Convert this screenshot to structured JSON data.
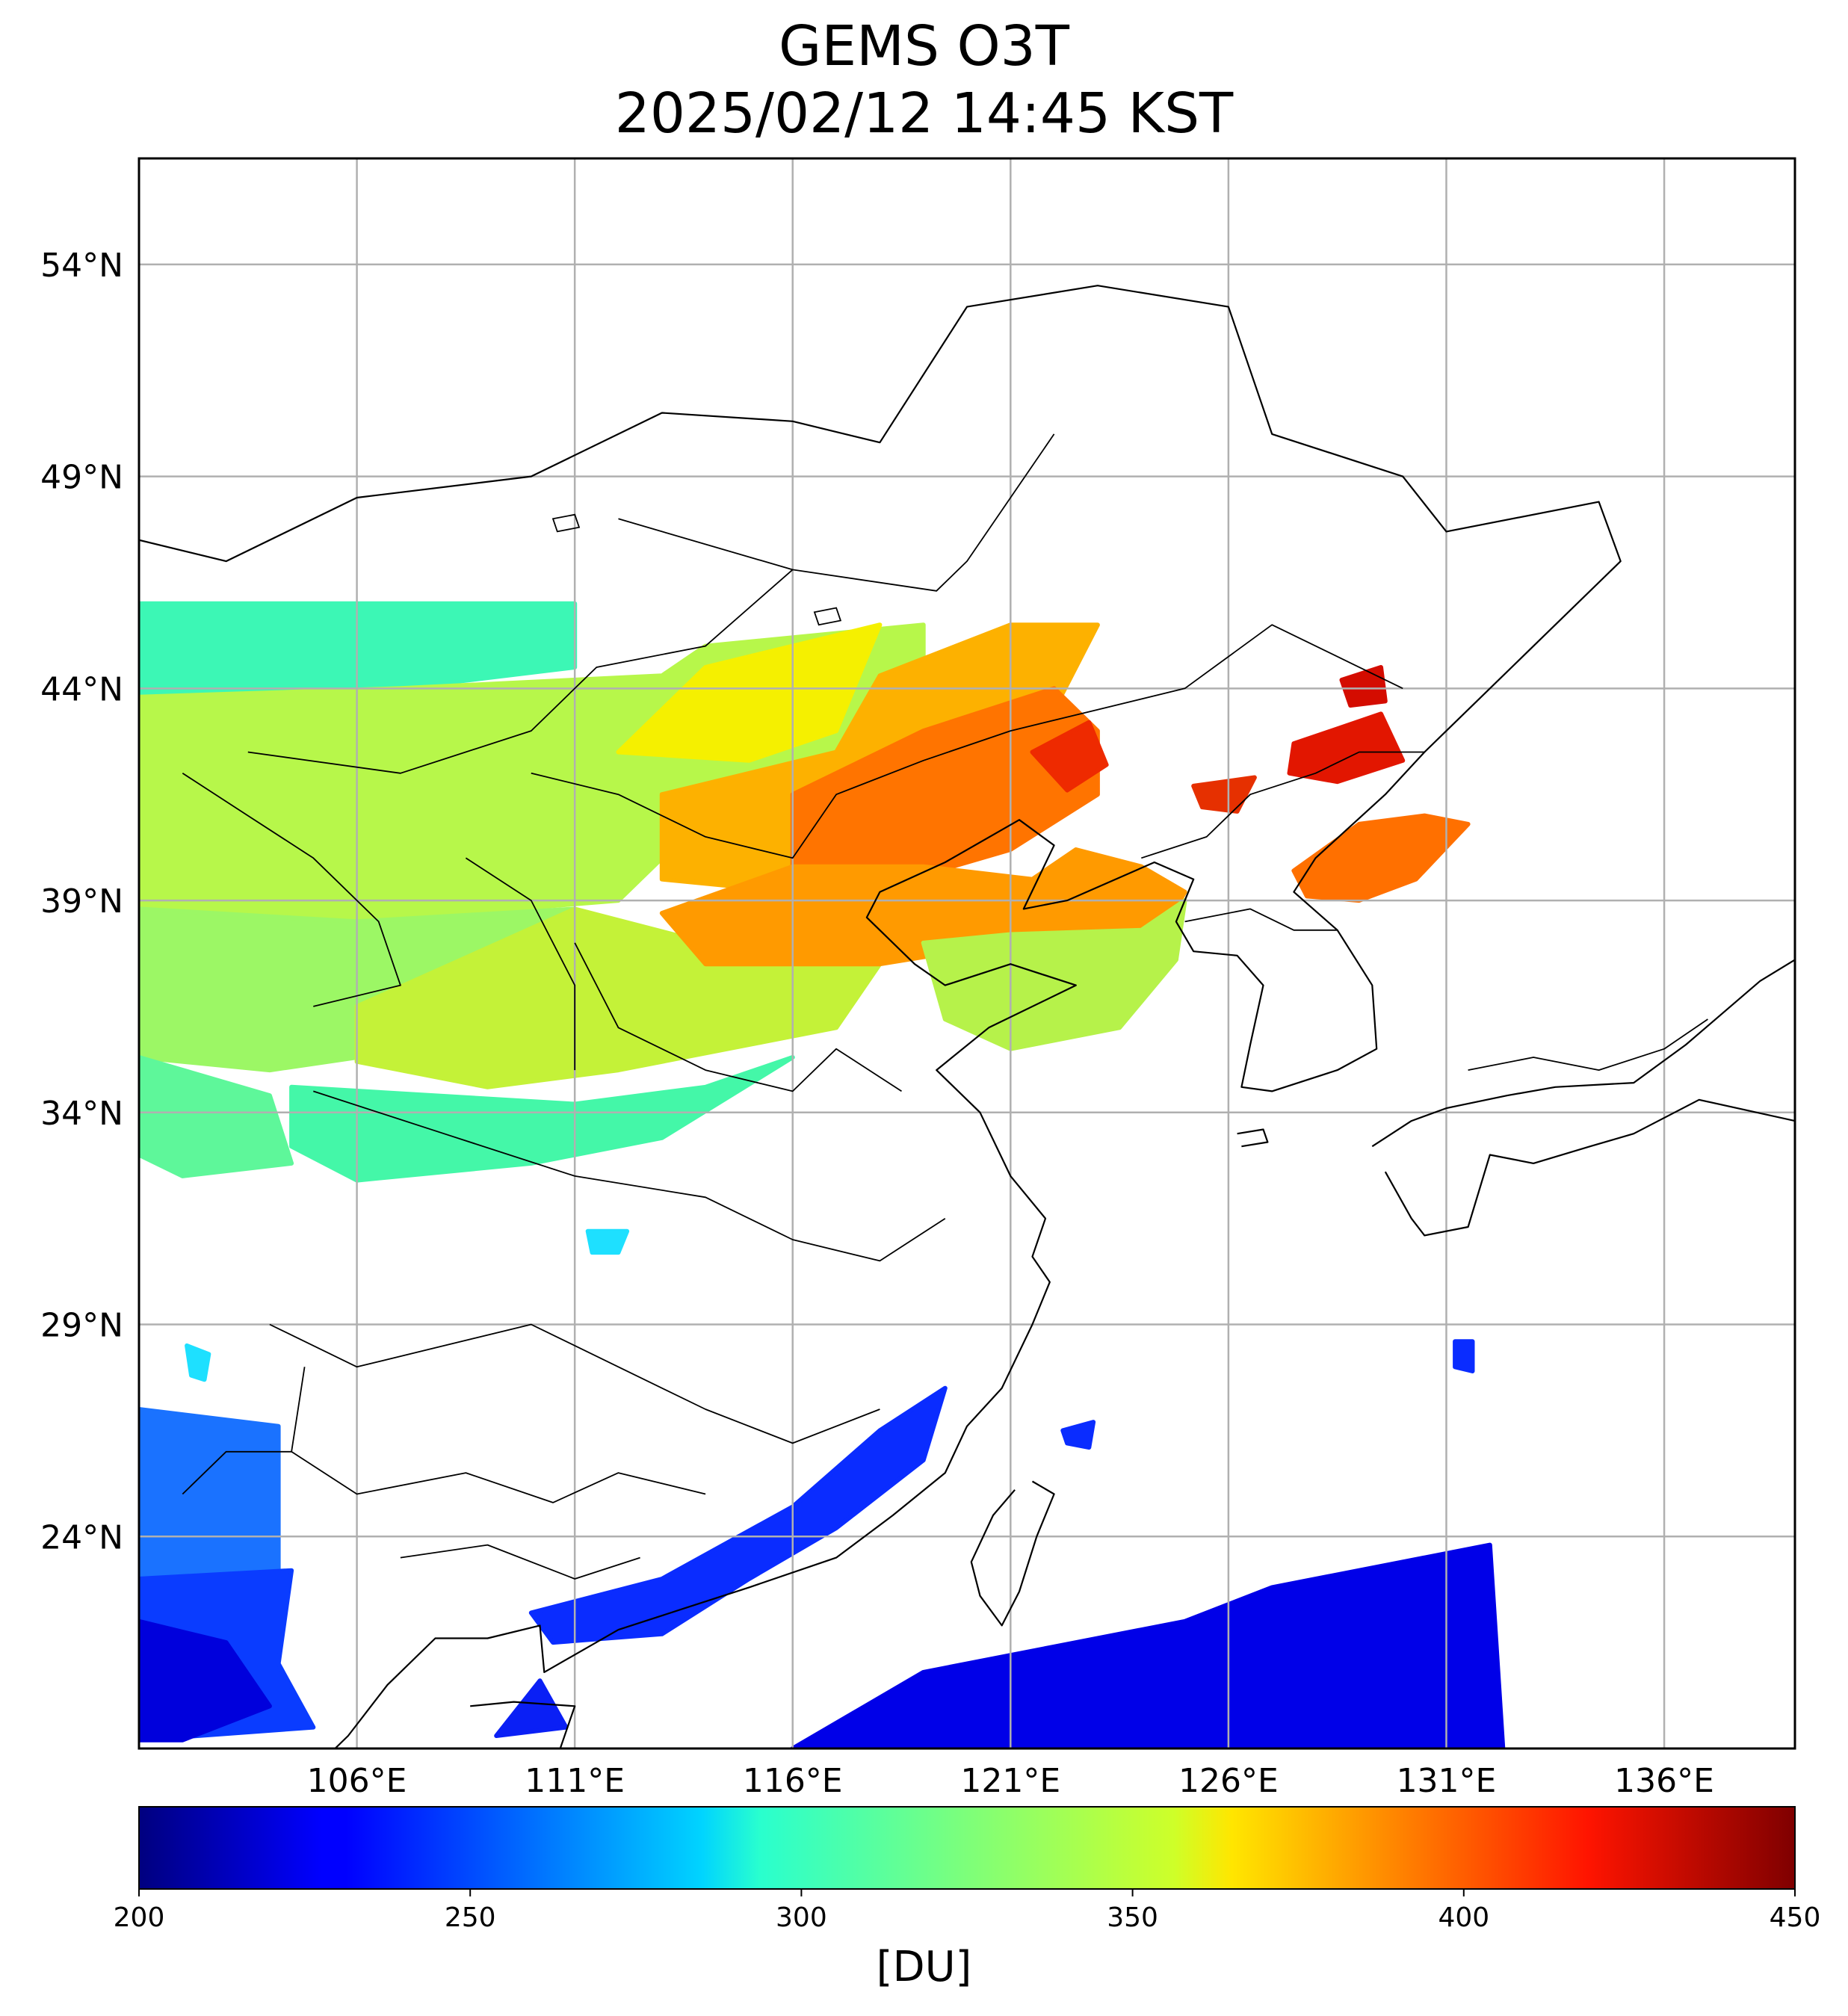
{
  "title": {
    "line1": "GEMS O3T",
    "line2": "2025/02/12 14:45 KST"
  },
  "map_extent": {
    "lon": [
      101,
      139
    ],
    "lat": [
      19,
      56.5
    ]
  },
  "lat_ticks": [
    {
      "value": 54,
      "label": "54°N"
    },
    {
      "value": 49,
      "label": "49°N"
    },
    {
      "value": 44,
      "label": "44°N"
    },
    {
      "value": 39,
      "label": "39°N"
    },
    {
      "value": 34,
      "label": "34°N"
    },
    {
      "value": 29,
      "label": "29°N"
    },
    {
      "value": 24,
      "label": "24°N"
    }
  ],
  "lon_ticks": [
    {
      "value": 106,
      "label": "106°E"
    },
    {
      "value": 111,
      "label": "111°E"
    },
    {
      "value": 116,
      "label": "116°E"
    },
    {
      "value": 121,
      "label": "121°E"
    },
    {
      "value": 126,
      "label": "126°E"
    },
    {
      "value": 131,
      "label": "131°E"
    },
    {
      "value": 136,
      "label": "136°E"
    }
  ],
  "colorbar": {
    "colormap": "jet",
    "range": [
      200,
      450
    ],
    "ticks": [
      "200",
      "250",
      "300",
      "350",
      "400",
      "450"
    ],
    "unit": "[DU]"
  },
  "ozone_regions": [
    {
      "color": "#3cf7b5",
      "lonlat": [
        [
          101,
          46
        ],
        [
          111,
          46
        ],
        [
          111,
          44.5
        ],
        [
          107,
          44
        ],
        [
          101,
          43.8
        ]
      ]
    },
    {
      "color": "#b7f74a",
      "lonlat": [
        [
          101,
          43.8
        ],
        [
          107,
          44
        ],
        [
          113,
          44.3
        ],
        [
          114,
          45
        ],
        [
          119,
          45.5
        ],
        [
          119,
          44
        ],
        [
          117,
          42
        ],
        [
          114,
          41
        ],
        [
          112,
          39
        ],
        [
          106,
          38.5
        ],
        [
          101,
          38.8
        ]
      ]
    },
    {
      "color": "#f5f000",
      "lonlat": [
        [
          112,
          42.5
        ],
        [
          114,
          44.5
        ],
        [
          118,
          45.5
        ],
        [
          117,
          43
        ],
        [
          115,
          42.3
        ]
      ]
    },
    {
      "color": "#9cf765",
      "lonlat": [
        [
          101,
          38.8
        ],
        [
          106,
          38.5
        ],
        [
          111,
          38.8
        ],
        [
          113,
          37.8
        ],
        [
          108,
          35.6
        ],
        [
          104,
          35
        ],
        [
          101,
          35.3
        ]
      ]
    },
    {
      "color": "#c4f238",
      "lonlat": [
        [
          106,
          36.5
        ],
        [
          111,
          38.8
        ],
        [
          114,
          38
        ],
        [
          118,
          37.5
        ],
        [
          117,
          36
        ],
        [
          112,
          35
        ],
        [
          109,
          34.6
        ],
        [
          106,
          35.2
        ]
      ]
    },
    {
      "color": "#44f7a8",
      "lonlat": [
        [
          104.5,
          34.6
        ],
        [
          111,
          34.2
        ],
        [
          114,
          34.6
        ],
        [
          116,
          35.3
        ],
        [
          113,
          33.4
        ],
        [
          110,
          32.8
        ],
        [
          106,
          32.4
        ],
        [
          104.5,
          33.2
        ]
      ]
    },
    {
      "color": "#5ef79a",
      "lonlat": [
        [
          101,
          35.3
        ],
        [
          104,
          34.4
        ],
        [
          104.5,
          32.8
        ],
        [
          102,
          32.5
        ],
        [
          101,
          33
        ]
      ]
    },
    {
      "color": "#fdb100",
      "lonlat": [
        [
          113,
          41.5
        ],
        [
          117,
          42.5
        ],
        [
          118,
          44.3
        ],
        [
          121,
          45.5
        ],
        [
          123,
          45.5
        ],
        [
          122,
          43.5
        ],
        [
          121,
          41.5
        ],
        [
          118,
          40
        ],
        [
          116,
          39.2
        ],
        [
          113,
          39.5
        ]
      ]
    },
    {
      "color": "#ff7400",
      "lonlat": [
        [
          116,
          41.5
        ],
        [
          119,
          43
        ],
        [
          122,
          44
        ],
        [
          123,
          43
        ],
        [
          123,
          41.5
        ],
        [
          121,
          40.2
        ],
        [
          118,
          39.3
        ],
        [
          116,
          39.8
        ]
      ]
    },
    {
      "color": "#ff9a00",
      "lonlat": [
        [
          113,
          38.7
        ],
        [
          116,
          39.8
        ],
        [
          119,
          39.8
        ],
        [
          121.5,
          39.5
        ],
        [
          122.5,
          40.2
        ],
        [
          124,
          39.8
        ],
        [
          125,
          39.2
        ],
        [
          124.5,
          38.3
        ],
        [
          121,
          38
        ],
        [
          118,
          37.5
        ],
        [
          114,
          37.5
        ]
      ]
    },
    {
      "color": "#ee2a00",
      "lonlat": [
        [
          121.5,
          42.5
        ],
        [
          122.8,
          43.2
        ],
        [
          123.2,
          42.2
        ],
        [
          122.3,
          41.6
        ]
      ]
    },
    {
      "color": "#b6f24a",
      "lonlat": [
        [
          119,
          38
        ],
        [
          121,
          38.2
        ],
        [
          124,
          38.3
        ],
        [
          125,
          39
        ],
        [
          124.8,
          37.6
        ],
        [
          123.5,
          36
        ],
        [
          121,
          35.5
        ],
        [
          119.5,
          36.2
        ]
      ]
    },
    {
      "color": "#ff7000",
      "lonlat": [
        [
          127.5,
          39.7
        ],
        [
          129,
          40.8
        ],
        [
          130.5,
          41
        ],
        [
          131.5,
          40.8
        ],
        [
          130.3,
          39.5
        ],
        [
          129,
          39
        ],
        [
          127.8,
          39.1
        ]
      ]
    },
    {
      "color": "#e21600",
      "lonlat": [
        [
          127.5,
          42.7
        ],
        [
          129.5,
          43.4
        ],
        [
          130,
          42.3
        ],
        [
          128.5,
          41.8
        ],
        [
          127.4,
          42
        ]
      ]
    },
    {
      "color": "#d40c00",
      "lonlat": [
        [
          128.6,
          44.2
        ],
        [
          129.5,
          44.5
        ],
        [
          129.6,
          43.7
        ],
        [
          128.8,
          43.6
        ]
      ]
    },
    {
      "color": "#e63000",
      "lonlat": [
        [
          125.2,
          41.7
        ],
        [
          126.6,
          41.9
        ],
        [
          126.2,
          41.1
        ],
        [
          125.4,
          41.2
        ]
      ]
    },
    {
      "color": "#0a2cff",
      "lonlat": [
        [
          113,
          23
        ],
        [
          116,
          24.7
        ],
        [
          118,
          26.5
        ],
        [
          119.5,
          27.5
        ],
        [
          119,
          25.8
        ],
        [
          117,
          24.2
        ],
        [
          115,
          23
        ],
        [
          113,
          21.7
        ],
        [
          110.5,
          21.5
        ],
        [
          110,
          22.2
        ]
      ]
    },
    {
      "color": "#0a1ff5",
      "lonlat": [
        [
          109.2,
          19.3
        ],
        [
          110.2,
          20.6
        ],
        [
          110.8,
          19.5
        ]
      ]
    },
    {
      "color": "#0000e8",
      "lonlat": [
        [
          116,
          19
        ],
        [
          119,
          20.8
        ],
        [
          122,
          21.4
        ],
        [
          125,
          22
        ],
        [
          127,
          22.8
        ],
        [
          130,
          23.4
        ],
        [
          132,
          23.8
        ],
        [
          132.3,
          19
        ]
      ]
    },
    {
      "color": "#1a72ff",
      "lonlat": [
        [
          101,
          27
        ],
        [
          104.2,
          26.6
        ],
        [
          104.2,
          23.2
        ],
        [
          101,
          23
        ]
      ]
    },
    {
      "color": "#0a3cff",
      "lonlat": [
        [
          101,
          23
        ],
        [
          104.5,
          23.2
        ],
        [
          104.2,
          21
        ],
        [
          105,
          19.5
        ],
        [
          101,
          19.2
        ]
      ]
    },
    {
      "color": "#0000dc",
      "lonlat": [
        [
          101,
          22
        ],
        [
          103,
          21.5
        ],
        [
          104,
          20
        ],
        [
          102,
          19.2
        ],
        [
          101,
          19.2
        ]
      ]
    },
    {
      "color": "#1ee0ff",
      "lonlat": [
        [
          111.3,
          31.2
        ],
        [
          112.2,
          31.2
        ],
        [
          112,
          30.7
        ],
        [
          111.4,
          30.7
        ]
      ]
    },
    {
      "color": "#1ee0ff",
      "lonlat": [
        [
          102.1,
          28.5
        ],
        [
          102.6,
          28.3
        ],
        [
          102.5,
          27.7
        ],
        [
          102.2,
          27.8
        ]
      ]
    },
    {
      "color": "#0a2cff",
      "lonlat": [
        [
          131.2,
          28.6
        ],
        [
          131.6,
          28.6
        ],
        [
          131.6,
          27.9
        ],
        [
          131.2,
          28
        ]
      ]
    },
    {
      "color": "#0a2cff",
      "lonlat": [
        [
          122.2,
          26.5
        ],
        [
          122.9,
          26.7
        ],
        [
          122.8,
          26.1
        ],
        [
          122.3,
          26.2
        ]
      ]
    }
  ],
  "land_outlines": [
    [
      [
        101,
        47.5
      ],
      [
        103,
        47
      ],
      [
        106,
        48.5
      ],
      [
        110,
        49
      ],
      [
        113,
        50.5
      ],
      [
        116,
        50.3
      ],
      [
        118,
        49.8
      ],
      [
        120,
        53
      ],
      [
        123,
        53.5
      ],
      [
        126,
        53
      ],
      [
        127,
        50
      ],
      [
        130,
        49
      ],
      [
        131,
        47.7
      ],
      [
        134.5,
        48.4
      ],
      [
        135,
        47
      ],
      [
        133,
        45
      ],
      [
        131,
        43
      ],
      [
        130.5,
        42.5
      ],
      [
        129.6,
        41.5
      ],
      [
        128,
        40
      ],
      [
        127.5,
        39.2
      ],
      [
        128.5,
        38.3
      ],
      [
        129.3,
        37
      ],
      [
        129.4,
        35.5
      ],
      [
        128.5,
        35
      ],
      [
        127,
        34.5
      ],
      [
        126.3,
        34.6
      ],
      [
        126.5,
        35.6
      ],
      [
        126.8,
        37
      ],
      [
        126.2,
        37.7
      ],
      [
        125.2,
        37.8
      ],
      [
        124.8,
        38.5
      ],
      [
        125.2,
        39.5
      ],
      [
        124.3,
        39.9
      ],
      [
        122.3,
        39
      ],
      [
        121.3,
        38.8
      ],
      [
        122,
        40.3
      ],
      [
        121.2,
        40.9
      ],
      [
        119.5,
        39.9
      ],
      [
        118,
        39.2
      ],
      [
        117.7,
        38.6
      ],
      [
        118.8,
        37.5
      ],
      [
        119.5,
        37
      ],
      [
        121,
        37.5
      ],
      [
        122.5,
        37
      ],
      [
        120.5,
        36
      ],
      [
        119.3,
        35
      ],
      [
        120.3,
        34
      ],
      [
        121,
        32.5
      ],
      [
        121.8,
        31.5
      ],
      [
        121.5,
        30.6
      ],
      [
        121.9,
        30
      ],
      [
        121.5,
        29
      ],
      [
        120.8,
        27.5
      ],
      [
        120,
        26.6
      ],
      [
        119.5,
        25.5
      ],
      [
        118.3,
        24.5
      ],
      [
        117,
        23.5
      ],
      [
        115,
        22.8
      ],
      [
        113.5,
        22.3
      ],
      [
        112,
        21.8
      ],
      [
        110.3,
        20.8
      ],
      [
        110.2,
        21.9
      ],
      [
        109,
        21.6
      ],
      [
        107.8,
        21.6
      ],
      [
        106.7,
        20.5
      ],
      [
        105.8,
        19.3
      ],
      [
        105.5,
        19
      ]
    ],
    [
      [
        129.3,
        33.2
      ],
      [
        130.2,
        33.8
      ],
      [
        131,
        34.1
      ],
      [
        132.4,
        34.4
      ],
      [
        133.5,
        34.6
      ],
      [
        135.3,
        34.7
      ],
      [
        136.5,
        35.6
      ],
      [
        138.2,
        37.1
      ],
      [
        139,
        37.6
      ],
      [
        139,
        33.8
      ],
      [
        136.8,
        34.3
      ],
      [
        135.3,
        33.5
      ],
      [
        134.3,
        33.2
      ],
      [
        133,
        32.8
      ],
      [
        132,
        33
      ],
      [
        131.5,
        31.3
      ],
      [
        130.5,
        31.1
      ],
      [
        130.2,
        31.5
      ],
      [
        129.6,
        32.6
      ]
    ],
    [
      [
        121.5,
        25.3
      ],
      [
        122,
        25
      ],
      [
        121.6,
        24
      ],
      [
        121.2,
        22.7
      ],
      [
        120.8,
        21.9
      ],
      [
        120.3,
        22.6
      ],
      [
        120.1,
        23.4
      ],
      [
        120.6,
        24.5
      ],
      [
        121.1,
        25.1
      ]
    ],
    [
      [
        126.2,
        33.5
      ],
      [
        126.8,
        33.6
      ],
      [
        126.9,
        33.3
      ],
      [
        126.3,
        33.2
      ]
    ],
    [
      [
        108.6,
        20
      ],
      [
        109.6,
        20.1
      ],
      [
        111,
        20
      ],
      [
        110.6,
        18.8
      ],
      [
        109.6,
        18.3
      ],
      [
        108.6,
        18.8
      ]
    ]
  ],
  "borders": [
    [
      [
        112,
        48
      ],
      [
        116,
        46.8
      ],
      [
        119.3,
        46.3
      ],
      [
        120,
        47
      ],
      [
        121,
        48.5
      ],
      [
        122,
        50
      ]
    ],
    [
      [
        103.5,
        42.5
      ],
      [
        107,
        42
      ],
      [
        110,
        43
      ],
      [
        111.5,
        44.5
      ],
      [
        114,
        45
      ],
      [
        116,
        46.8
      ]
    ],
    [
      [
        110,
        42
      ],
      [
        112,
        41.5
      ],
      [
        114,
        40.5
      ],
      [
        116,
        40
      ],
      [
        117,
        41.5
      ],
      [
        119,
        42.3
      ],
      [
        121,
        43
      ],
      [
        123,
        43.5
      ],
      [
        125,
        44
      ],
      [
        127,
        45.5
      ],
      [
        130,
        44
      ]
    ],
    [
      [
        111,
        38
      ],
      [
        112,
        36
      ],
      [
        114,
        35
      ],
      [
        116,
        34.5
      ],
      [
        117,
        35.5
      ],
      [
        118.5,
        34.5
      ]
    ],
    [
      [
        105,
        34.5
      ],
      [
        108,
        33.5
      ],
      [
        111,
        32.5
      ],
      [
        114,
        32
      ],
      [
        116,
        31
      ],
      [
        118,
        30.5
      ],
      [
        119.5,
        31.5
      ]
    ],
    [
      [
        104,
        29
      ],
      [
        106,
        28
      ],
      [
        108,
        28.5
      ],
      [
        110,
        29
      ],
      [
        112,
        28
      ],
      [
        114,
        27
      ],
      [
        116,
        26.2
      ],
      [
        118,
        27
      ]
    ],
    [
      [
        104.5,
        26
      ],
      [
        106,
        25
      ],
      [
        108.5,
        25.5
      ],
      [
        110.5,
        24.8
      ],
      [
        112,
        25.5
      ],
      [
        114,
        25
      ]
    ],
    [
      [
        107,
        23.5
      ],
      [
        109,
        23.8
      ],
      [
        111,
        23
      ],
      [
        112.5,
        23.5
      ]
    ],
    [
      [
        102,
        25
      ],
      [
        103,
        26
      ],
      [
        104.5,
        26
      ],
      [
        104.8,
        28
      ]
    ],
    [
      [
        108.5,
        40
      ],
      [
        110,
        39
      ],
      [
        111,
        37
      ],
      [
        111,
        35
      ]
    ],
    [
      [
        102,
        42
      ],
      [
        103.5,
        41
      ],
      [
        105,
        40
      ],
      [
        106.5,
        38.5
      ],
      [
        107,
        37
      ],
      [
        105,
        36.5
      ]
    ],
    [
      [
        124,
        40
      ],
      [
        125.5,
        40.5
      ],
      [
        126.5,
        41.5
      ],
      [
        128,
        42
      ],
      [
        129,
        42.5
      ],
      [
        130.5,
        42.5
      ]
    ],
    [
      [
        125,
        38.5
      ],
      [
        126.5,
        38.8
      ],
      [
        127.5,
        38.3
      ],
      [
        128.5,
        38.3
      ]
    ],
    [
      [
        131.5,
        35
      ],
      [
        133,
        35.3
      ],
      [
        134.5,
        35
      ],
      [
        136,
        35.5
      ],
      [
        137,
        36.2
      ]
    ]
  ],
  "cities": [
    [
      [
        110.5,
        48
      ],
      [
        111,
        48.1
      ],
      [
        111.1,
        47.8
      ],
      [
        110.6,
        47.7
      ]
    ],
    [
      [
        116.5,
        45.8
      ],
      [
        117,
        45.9
      ],
      [
        117.1,
        45.6
      ],
      [
        116.6,
        45.5
      ]
    ]
  ]
}
